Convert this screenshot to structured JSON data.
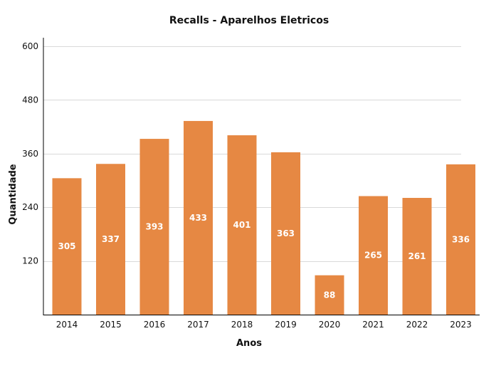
{
  "chart_data": {
    "type": "bar",
    "title": "Recalls - Aparelhos Eletricos",
    "xlabel": "Anos",
    "ylabel": "Quantidade",
    "categories": [
      "2014",
      "2015",
      "2016",
      "2017",
      "2018",
      "2019",
      "2020",
      "2021",
      "2022",
      "2023"
    ],
    "values": [
      305,
      337,
      393,
      433,
      401,
      363,
      88,
      265,
      261,
      336
    ],
    "ylim": [
      0,
      600
    ],
    "yticks": [
      120,
      240,
      360,
      480,
      600
    ],
    "grid": true,
    "bar_color": "#E68843",
    "data_labels": true
  }
}
